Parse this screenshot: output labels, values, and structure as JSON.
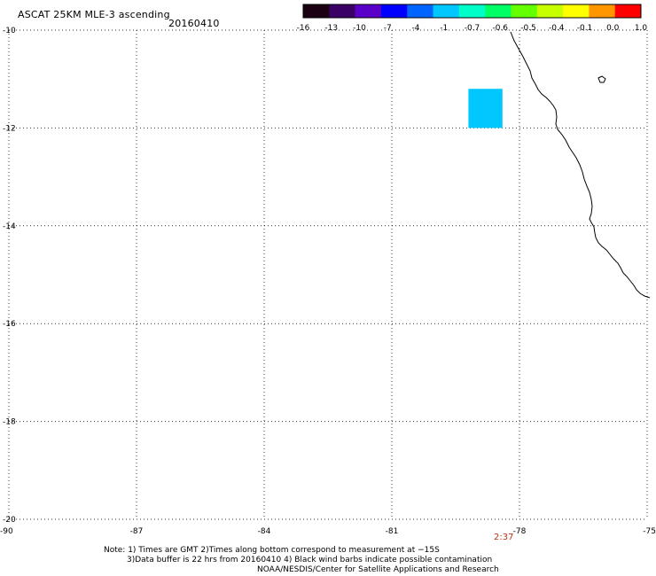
{
  "title": "ASCAT 25KM MLE-3 ascending",
  "date": "20160410",
  "colorbar": {
    "tick_labels": [
      "-16",
      "-13",
      "-10",
      "-7",
      "-4",
      "-1",
      "-0.7",
      "-0.6",
      "-0.5",
      "-0.4",
      "-0.1",
      "0.0",
      "1.0"
    ],
    "colors": [
      "#1a0010",
      "#3a0064",
      "#5a00c8",
      "#0000ff",
      "#0064ff",
      "#00c8ff",
      "#00ffc8",
      "#00ff64",
      "#64ff00",
      "#c8ff00",
      "#ffff00",
      "#ff9600",
      "#ff0000"
    ]
  },
  "map": {
    "lon_ticks": [
      -90,
      -87,
      -84,
      -81,
      -78,
      -75
    ],
    "lat_ticks": [
      -10,
      -12,
      -14,
      -16,
      -18,
      -20
    ],
    "lon_labels": [
      "-90",
      "-87",
      "-84",
      "-81",
      "-78",
      "-75"
    ],
    "lat_labels": [
      "-10",
      "-12",
      "-14",
      "-16",
      "-18",
      "-20"
    ],
    "lon_range": [
      -90,
      -75
    ],
    "lat_range": [
      -20,
      -10
    ],
    "grid": "dotted",
    "data_cell": {
      "lon": [
        -79.2,
        -78.4
      ],
      "lat": [
        -12.0,
        -11.2
      ],
      "color": "#00c8ff"
    },
    "coastline_color": "#000000"
  },
  "time_label": "2:37",
  "notes": {
    "line1": "Note: 1) Times are GMT 2)Times along bottom correspond to measurement at −15S",
    "line2": "3)Data buffer is 22 hrs from 20160410 4) Black wind barbs indicate possible contamination",
    "line3": "NOAA/NESDIS/Center for Satellite Applications and Research"
  }
}
